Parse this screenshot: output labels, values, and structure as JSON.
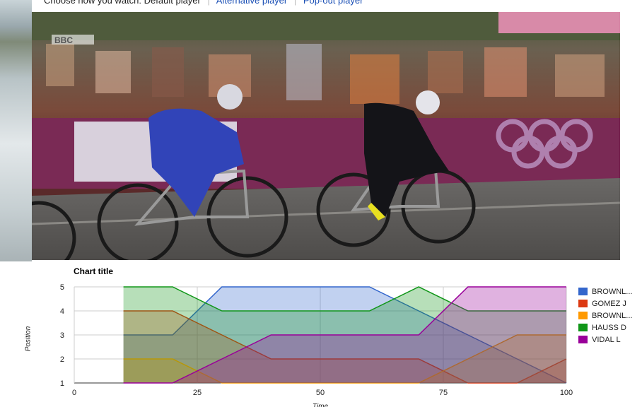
{
  "watch_bar": {
    "prompt": "Choose how you watch:",
    "default_player": "Default player",
    "alternative_player": "Alternative player",
    "popout_player": "Pop-out player"
  },
  "video": {
    "broadcaster_logo": "BBC",
    "description_icon": "video-frame"
  },
  "chart": {
    "title": "Chart title",
    "ylabel": "Position",
    "xlabel": "Time"
  },
  "legend": [
    {
      "label": "BROWNL...",
      "color": "#3366cc"
    },
    {
      "label": "GOMEZ J",
      "color": "#dc3912"
    },
    {
      "label": "BROWNL...",
      "color": "#ff9900"
    },
    {
      "label": "HAUSS D",
      "color": "#109618"
    },
    {
      "label": "VIDAL L",
      "color": "#990099"
    }
  ],
  "chart_data": {
    "type": "area",
    "title": "Chart title",
    "xlabel": "Time",
    "ylabel": "Position",
    "xlim": [
      0,
      100
    ],
    "ylim": [
      1,
      5
    ],
    "xticks": [
      0,
      25,
      50,
      75,
      100
    ],
    "yticks": [
      1,
      2,
      3,
      4,
      5
    ],
    "grid": true,
    "legend_position": "right",
    "x": [
      10,
      20,
      30,
      40,
      50,
      60,
      70,
      80,
      90,
      100
    ],
    "series": [
      {
        "name": "BROWNL...",
        "color": "#3366cc",
        "values": [
          3,
          3,
          5,
          5,
          5,
          5,
          4,
          3,
          2,
          1
        ]
      },
      {
        "name": "GOMEZ J",
        "color": "#dc3912",
        "values": [
          4,
          4,
          3,
          2,
          2,
          2,
          2,
          1,
          1,
          2
        ]
      },
      {
        "name": "BROWNL...",
        "color": "#ff9900",
        "values": [
          2,
          2,
          1,
          1,
          1,
          1,
          1,
          2,
          3,
          3
        ]
      },
      {
        "name": "HAUSS D",
        "color": "#109618",
        "values": [
          5,
          5,
          4,
          4,
          4,
          4,
          5,
          4,
          4,
          4
        ]
      },
      {
        "name": "VIDAL L",
        "color": "#990099",
        "values": [
          1,
          1,
          2,
          3,
          3,
          3,
          3,
          5,
          5,
          5
        ]
      }
    ]
  }
}
